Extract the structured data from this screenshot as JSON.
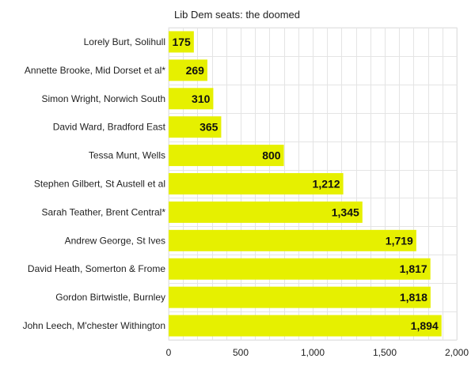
{
  "chart_data": {
    "type": "bar",
    "orientation": "horizontal",
    "title": "Lib Dem seats: the doomed",
    "xlabel": "",
    "ylabel": "",
    "categories": [
      "Lorely Burt, Solihull",
      "Annette Brooke, Mid Dorset et al*",
      "Simon Wright, Norwich South",
      "David Ward, Bradford East",
      "Tessa Munt, Wells",
      "Stephen Gilbert, St Austell et al",
      "Sarah Teather, Brent Central*",
      "Andrew George, St Ives",
      "David Heath, Somerton & Frome",
      "Gordon Birtwistle, Burnley",
      "John Leech, M'chester Withington"
    ],
    "values": [
      175,
      269,
      310,
      365,
      800,
      1212,
      1345,
      1719,
      1817,
      1818,
      1894
    ],
    "value_labels": [
      "175",
      "269",
      "310",
      "365",
      "800",
      "1,212",
      "1,345",
      "1,719",
      "1,817",
      "1,818",
      "1,894"
    ],
    "xlim": [
      0,
      2000
    ],
    "x_ticks": [
      0,
      500,
      1000,
      1500,
      2000
    ],
    "x_tick_labels": [
      "0",
      "500",
      "1,000",
      "1,500",
      "2,000"
    ],
    "grid": true,
    "legend": "none",
    "colors": {
      "bar": "#e6f000",
      "grid": "#e4e4e4",
      "axis": "#cccccc"
    }
  }
}
